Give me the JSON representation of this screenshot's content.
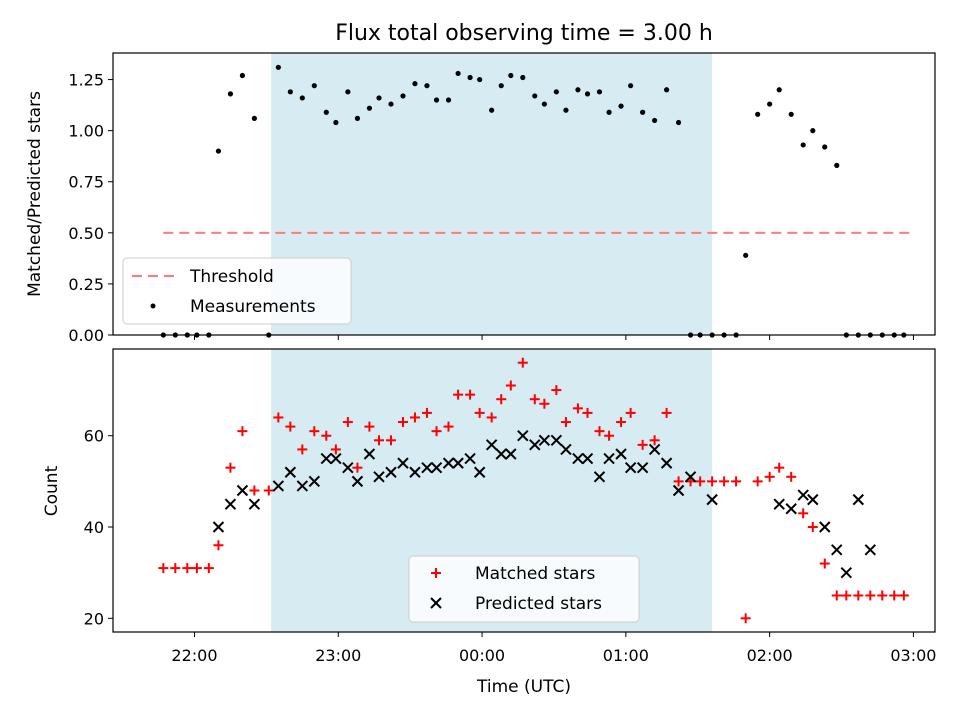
{
  "chart_data": [
    {
      "type": "scatter",
      "title": "Flux total observing time = 3.00 h",
      "ylabel": "Matched/Predicted stars",
      "xlabel": "",
      "ylim": [
        0,
        1.38
      ],
      "xlim": [
        "21:26",
        "03:09"
      ],
      "yticks": [
        "0.00",
        "0.25",
        "0.50",
        "0.75",
        "1.00",
        "1.25"
      ],
      "shaded_interval": [
        "22:32",
        "01:36"
      ],
      "threshold": {
        "name": "Threshold",
        "value": 0.5,
        "x_range": [
          "21:47",
          "02:59"
        ],
        "color": "#ff7b7b"
      },
      "legend_position": "lower-left",
      "series": [
        {
          "name": "Measurements",
          "color": "#000000",
          "x": [
            "21:47",
            "21:52",
            "21:57",
            "22:01",
            "22:06",
            "22:10",
            "22:15",
            "22:20",
            "22:25",
            "22:31",
            "22:35",
            "22:40",
            "22:45",
            "22:50",
            "22:55",
            "22:59",
            "23:04",
            "23:08",
            "23:13",
            "23:17",
            "23:22",
            "23:27",
            "23:32",
            "23:37",
            "23:41",
            "23:46",
            "23:50",
            "23:55",
            "23:59",
            "00:04",
            "00:08",
            "00:12",
            "00:17",
            "00:22",
            "00:26",
            "00:31",
            "00:35",
            "00:40",
            "00:44",
            "00:49",
            "00:53",
            "00:58",
            "01:02",
            "01:07",
            "01:12",
            "01:17",
            "01:22",
            "01:27",
            "01:31",
            "01:36",
            "01:41",
            "01:46",
            "01:50",
            "01:55",
            "02:00",
            "02:04",
            "02:09",
            "02:14",
            "02:18",
            "02:23",
            "02:28",
            "02:32",
            "02:37",
            "02:42",
            "02:47",
            "02:52",
            "02:56"
          ],
          "y": [
            0.0,
            0.0,
            0.0,
            0.0,
            0.0,
            0.9,
            1.18,
            1.27,
            1.06,
            0.0,
            1.31,
            1.19,
            1.16,
            1.22,
            1.09,
            1.04,
            1.19,
            1.06,
            1.11,
            1.16,
            1.13,
            1.17,
            1.23,
            1.22,
            1.15,
            1.15,
            1.28,
            1.26,
            1.25,
            1.1,
            1.22,
            1.27,
            1.26,
            1.17,
            1.13,
            1.19,
            1.1,
            1.2,
            1.18,
            1.19,
            1.09,
            1.12,
            1.22,
            1.09,
            1.05,
            1.2,
            1.04,
            0.0,
            0.0,
            0.0,
            0.0,
            0.0,
            0.39,
            1.08,
            1.13,
            1.2,
            1.08,
            0.93,
            1.0,
            0.92,
            0.83,
            0.0,
            0.0,
            0.0,
            0.0,
            0.0,
            0.0
          ]
        }
      ]
    },
    {
      "type": "scatter",
      "xlabel": "Time (UTC)",
      "ylabel": "Count",
      "ylim": [
        17,
        79
      ],
      "xlim": [
        "21:26",
        "03:09"
      ],
      "yticks": [
        "20",
        "40",
        "60"
      ],
      "xticks": [
        "22:00",
        "23:00",
        "00:00",
        "01:00",
        "02:00",
        "03:00"
      ],
      "shaded_interval": [
        "22:32",
        "01:36"
      ],
      "legend_position": "lower-center",
      "series": [
        {
          "name": "Matched stars",
          "marker": "+",
          "color": "#ff0000",
          "x": [
            "21:47",
            "21:52",
            "21:57",
            "22:01",
            "22:06",
            "22:10",
            "22:15",
            "22:20",
            "22:25",
            "22:31",
            "22:35",
            "22:40",
            "22:45",
            "22:50",
            "22:55",
            "22:59",
            "23:04",
            "23:08",
            "23:13",
            "23:17",
            "23:22",
            "23:27",
            "23:32",
            "23:37",
            "23:41",
            "23:46",
            "23:50",
            "23:55",
            "23:59",
            "00:04",
            "00:08",
            "00:12",
            "00:17",
            "00:22",
            "00:26",
            "00:31",
            "00:35",
            "00:40",
            "00:44",
            "00:49",
            "00:53",
            "00:58",
            "01:02",
            "01:07",
            "01:12",
            "01:17",
            "01:22",
            "01:27",
            "01:31",
            "01:36",
            "01:41",
            "01:46",
            "01:50",
            "01:55",
            "02:00",
            "02:04",
            "02:09",
            "02:14",
            "02:18",
            "02:23",
            "02:28",
            "02:32",
            "02:37",
            "02:42",
            "02:47",
            "02:52",
            "02:56"
          ],
          "y": [
            31,
            31,
            31,
            31,
            31,
            36,
            53,
            61,
            48,
            48,
            64,
            62,
            57,
            61,
            60,
            57,
            63,
            53,
            62,
            59,
            59,
            63,
            64,
            65,
            61,
            62,
            69,
            69,
            65,
            64,
            68,
            71,
            76,
            68,
            67,
            70,
            63,
            66,
            65,
            61,
            60,
            63,
            65,
            58,
            59,
            65,
            50,
            50,
            50,
            50,
            50,
            50,
            20,
            50,
            51,
            53,
            51,
            43,
            40,
            32,
            25,
            25,
            25,
            25,
            25,
            25,
            25
          ]
        },
        {
          "name": "Predicted stars",
          "marker": "x",
          "color": "#000000",
          "x": [
            "22:10",
            "22:15",
            "22:20",
            "22:25",
            "22:35",
            "22:40",
            "22:45",
            "22:50",
            "22:55",
            "22:59",
            "23:04",
            "23:08",
            "23:13",
            "23:17",
            "23:22",
            "23:27",
            "23:32",
            "23:37",
            "23:41",
            "23:46",
            "23:50",
            "23:55",
            "23:59",
            "00:04",
            "00:08",
            "00:12",
            "00:17",
            "00:22",
            "00:26",
            "00:31",
            "00:35",
            "00:40",
            "00:44",
            "00:49",
            "00:53",
            "00:58",
            "01:02",
            "01:07",
            "01:12",
            "01:17",
            "01:22",
            "01:27",
            "01:36",
            "02:04",
            "02:09",
            "02:14",
            "02:18",
            "02:23",
            "02:28",
            "02:32",
            "02:37",
            "02:42"
          ],
          "y": [
            40,
            45,
            48,
            45,
            49,
            52,
            49,
            50,
            55,
            55,
            53,
            50,
            56,
            51,
            52,
            54,
            52,
            53,
            53,
            54,
            54,
            55,
            52,
            58,
            56,
            56,
            60,
            58,
            59,
            59,
            57,
            55,
            55,
            51,
            55,
            56,
            53,
            53,
            57,
            54,
            48,
            51,
            46,
            45,
            44,
            47,
            46,
            40,
            35,
            30,
            46,
            35
          ]
        }
      ]
    }
  ]
}
